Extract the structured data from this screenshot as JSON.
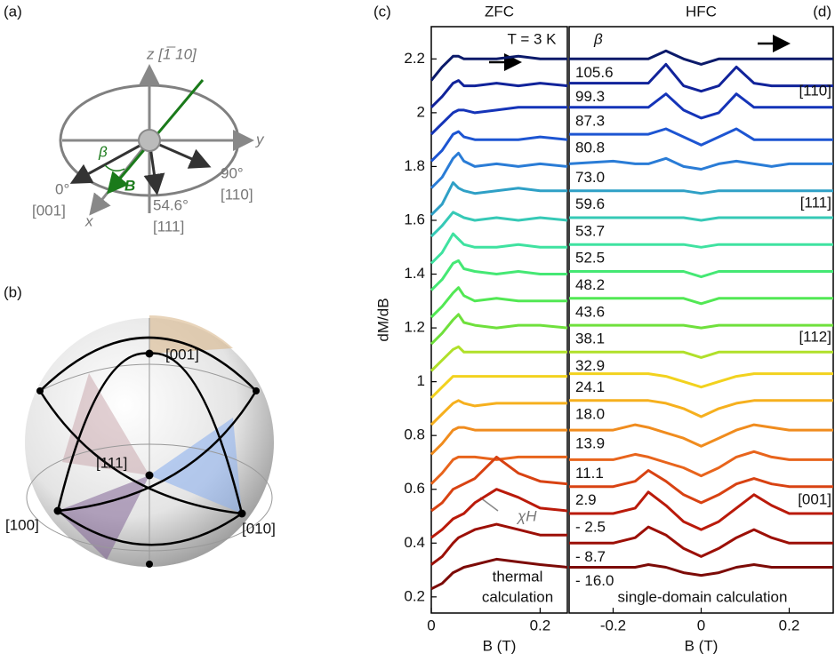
{
  "panel_a": {
    "label": "(a)",
    "z": "z [1̅ 10]",
    "y": "y",
    "x": "x",
    "beta": "β",
    "B": "B",
    "dirs": [
      {
        "angle": "0°",
        "axis": "[001]"
      },
      {
        "angle": "54.6°",
        "axis": "[111]"
      },
      {
        "angle": "90°",
        "axis": "[110]"
      }
    ]
  },
  "panel_b": {
    "label": "(b)",
    "dirs": [
      "[001]",
      "[111]",
      "[100]",
      "[010]"
    ]
  },
  "chart_data": [
    {
      "type": "line",
      "label": "(c)",
      "title": "ZFC",
      "ylabel": "dM/dB",
      "xlabel": "B (T)",
      "x": [
        0,
        0.02,
        0.04,
        0.05,
        0.06,
        0.08,
        0.12,
        0.16,
        0.2,
        0.25
      ],
      "xlim": [
        0,
        0.25
      ],
      "xticks": [
        0,
        0.2
      ],
      "ylim": [
        0.14,
        2.32
      ],
      "yticks": [
        0.2,
        0.4,
        0.6,
        0.8,
        1.0,
        1.2,
        1.4,
        1.6,
        1.8,
        2.0,
        2.2
      ],
      "annotations": [
        "T = 3 K",
        "χH",
        "thermal",
        "calculation"
      ],
      "series": [
        {
          "color": "#0b1a6a",
          "values": [
            2.12,
            2.17,
            2.21,
            2.21,
            2.2,
            2.2,
            2.2,
            2.21,
            2.2,
            2.2
          ]
        },
        {
          "color": "#11239a",
          "values": [
            2.02,
            2.06,
            2.11,
            2.12,
            2.1,
            2.1,
            2.11,
            2.1,
            2.11,
            2.1
          ]
        },
        {
          "color": "#1534b8",
          "values": [
            1.92,
            1.96,
            2.0,
            2.01,
            2.01,
            2.0,
            2.01,
            2.02,
            2.02,
            2.02
          ]
        },
        {
          "color": "#1d55d2",
          "values": [
            1.82,
            1.86,
            1.92,
            1.93,
            1.91,
            1.9,
            1.9,
            1.9,
            1.91,
            1.9
          ]
        },
        {
          "color": "#2a7cd6",
          "values": [
            1.72,
            1.76,
            1.83,
            1.85,
            1.82,
            1.8,
            1.81,
            1.8,
            1.81,
            1.8
          ]
        },
        {
          "color": "#2fa0c6",
          "values": [
            1.62,
            1.66,
            1.74,
            1.72,
            1.71,
            1.7,
            1.71,
            1.72,
            1.71,
            1.71
          ]
        },
        {
          "color": "#36c9b6",
          "values": [
            1.54,
            1.58,
            1.63,
            1.62,
            1.61,
            1.6,
            1.61,
            1.6,
            1.61,
            1.6
          ]
        },
        {
          "color": "#3fe2a0",
          "values": [
            1.44,
            1.48,
            1.55,
            1.53,
            1.51,
            1.5,
            1.5,
            1.51,
            1.5,
            1.5
          ]
        },
        {
          "color": "#45e874",
          "values": [
            1.34,
            1.38,
            1.44,
            1.45,
            1.42,
            1.41,
            1.4,
            1.41,
            1.4,
            1.4
          ]
        },
        {
          "color": "#52e854",
          "values": [
            1.24,
            1.28,
            1.33,
            1.35,
            1.32,
            1.3,
            1.31,
            1.3,
            1.3,
            1.3
          ]
        },
        {
          "color": "#6fe03c",
          "values": [
            1.14,
            1.18,
            1.23,
            1.25,
            1.22,
            1.21,
            1.2,
            1.21,
            1.21,
            1.2
          ]
        },
        {
          "color": "#b0e02a",
          "values": [
            1.04,
            1.08,
            1.12,
            1.13,
            1.11,
            1.11,
            1.11,
            1.11,
            1.11,
            1.11
          ]
        },
        {
          "color": "#f2d21e",
          "values": [
            0.94,
            0.98,
            1.02,
            1.02,
            1.02,
            1.02,
            1.02,
            1.02,
            1.02,
            1.02
          ]
        },
        {
          "color": "#f6b01e",
          "values": [
            0.84,
            0.88,
            0.92,
            0.93,
            0.92,
            0.91,
            0.92,
            0.92,
            0.92,
            0.92
          ]
        },
        {
          "color": "#f08c1e",
          "values": [
            0.73,
            0.77,
            0.82,
            0.83,
            0.83,
            0.82,
            0.82,
            0.82,
            0.82,
            0.82
          ]
        },
        {
          "color": "#e8641c",
          "values": [
            0.62,
            0.66,
            0.71,
            0.72,
            0.72,
            0.72,
            0.71,
            0.72,
            0.72,
            0.72
          ]
        },
        {
          "color": "#d84212",
          "values": [
            0.52,
            0.55,
            0.6,
            0.61,
            0.62,
            0.64,
            0.72,
            0.66,
            0.63,
            0.62
          ]
        },
        {
          "color": "#ba1a0a",
          "values": [
            0.42,
            0.45,
            0.49,
            0.5,
            0.51,
            0.55,
            0.6,
            0.57,
            0.53,
            0.52
          ]
        },
        {
          "color": "#9c0f06",
          "values": [
            0.32,
            0.35,
            0.4,
            0.42,
            0.43,
            0.45,
            0.47,
            0.45,
            0.43,
            0.43
          ]
        },
        {
          "color": "#7c0a06",
          "values": [
            0.23,
            0.25,
            0.29,
            0.3,
            0.31,
            0.32,
            0.34,
            0.33,
            0.32,
            0.31
          ]
        }
      ]
    },
    {
      "type": "line",
      "label": "(d)",
      "title": "HFC",
      "xlabel": "B (T)",
      "legend_title": "β",
      "x": [
        -0.3,
        -0.2,
        -0.15,
        -0.12,
        -0.08,
        -0.04,
        0,
        0.04,
        0.08,
        0.12,
        0.16,
        0.2,
        0.3
      ],
      "xlim": [
        -0.3,
        0.3
      ],
      "xticks": [
        -0.2,
        0,
        0.2
      ],
      "ylim": [
        0.14,
        2.32
      ],
      "annotations": [
        "[110]",
        "[111]",
        "[112]",
        "[001]",
        "single-domain calculation"
      ],
      "series": [
        {
          "name": "105.6",
          "color": "#0b1a6a",
          "values": [
            2.2,
            2.2,
            2.2,
            2.2,
            2.23,
            2.2,
            2.18,
            2.2,
            2.2,
            2.2,
            2.2,
            2.2,
            2.2
          ]
        },
        {
          "name": "99.3",
          "color": "#11239a",
          "values": [
            2.11,
            2.11,
            2.11,
            2.11,
            2.18,
            2.1,
            2.08,
            2.1,
            2.17,
            2.11,
            2.1,
            2.1,
            2.1
          ]
        },
        {
          "name": "87.3",
          "color": "#1534b8",
          "values": [
            2.02,
            2.02,
            2.02,
            2.02,
            2.07,
            2.01,
            1.98,
            2.0,
            2.07,
            2.02,
            2.02,
            2.02,
            2.02
          ]
        },
        {
          "name": "80.8",
          "color": "#1d55d2",
          "values": [
            1.92,
            1.92,
            1.92,
            1.92,
            1.94,
            1.91,
            1.88,
            1.91,
            1.94,
            1.9,
            1.9,
            1.9,
            1.9
          ]
        },
        {
          "name": "73.0",
          "color": "#2a7cd6",
          "values": [
            1.81,
            1.82,
            1.81,
            1.81,
            1.83,
            1.8,
            1.79,
            1.81,
            1.82,
            1.81,
            1.8,
            1.81,
            1.81
          ]
        },
        {
          "name": "59.6",
          "color": "#2fa0c6",
          "values": [
            1.71,
            1.71,
            1.71,
            1.71,
            1.71,
            1.71,
            1.7,
            1.71,
            1.71,
            1.71,
            1.71,
            1.71,
            1.71
          ]
        },
        {
          "name": "53.7",
          "color": "#36c9b6",
          "values": [
            1.61,
            1.61,
            1.61,
            1.61,
            1.61,
            1.61,
            1.6,
            1.61,
            1.61,
            1.61,
            1.61,
            1.61,
            1.61
          ]
        },
        {
          "name": "52.5",
          "color": "#3fe2a0",
          "values": [
            1.51,
            1.51,
            1.51,
            1.51,
            1.51,
            1.51,
            1.5,
            1.51,
            1.51,
            1.51,
            1.51,
            1.51,
            1.51
          ]
        },
        {
          "name": "48.2",
          "color": "#45e874",
          "values": [
            1.41,
            1.41,
            1.41,
            1.41,
            1.41,
            1.41,
            1.39,
            1.41,
            1.41,
            1.41,
            1.41,
            1.41,
            1.41
          ]
        },
        {
          "name": "43.6",
          "color": "#52e854",
          "values": [
            1.31,
            1.31,
            1.31,
            1.31,
            1.31,
            1.31,
            1.29,
            1.31,
            1.31,
            1.31,
            1.31,
            1.31,
            1.31
          ]
        },
        {
          "name": "38.1",
          "color": "#6fe03c",
          "values": [
            1.21,
            1.21,
            1.21,
            1.21,
            1.21,
            1.21,
            1.2,
            1.21,
            1.21,
            1.21,
            1.21,
            1.21,
            1.21
          ]
        },
        {
          "name": "32.9",
          "color": "#b0e02a",
          "values": [
            1.11,
            1.11,
            1.11,
            1.11,
            1.11,
            1.11,
            1.09,
            1.11,
            1.11,
            1.11,
            1.11,
            1.11,
            1.11
          ]
        },
        {
          "name": "24.1",
          "color": "#f2d21e",
          "values": [
            1.03,
            1.03,
            1.03,
            1.03,
            1.02,
            1.0,
            0.98,
            1.0,
            1.02,
            1.03,
            1.03,
            1.03,
            1.03
          ]
        },
        {
          "name": "18.0",
          "color": "#f6b01e",
          "values": [
            0.93,
            0.93,
            0.93,
            0.93,
            0.92,
            0.9,
            0.87,
            0.9,
            0.92,
            0.93,
            0.93,
            0.93,
            0.93
          ]
        },
        {
          "name": "13.9",
          "color": "#f08c1e",
          "values": [
            0.82,
            0.82,
            0.84,
            0.83,
            0.81,
            0.79,
            0.76,
            0.79,
            0.82,
            0.84,
            0.83,
            0.82,
            0.82
          ]
        },
        {
          "name": "11.1",
          "color": "#e8641c",
          "values": [
            0.71,
            0.71,
            0.73,
            0.72,
            0.7,
            0.68,
            0.65,
            0.68,
            0.72,
            0.74,
            0.72,
            0.71,
            0.71
          ]
        },
        {
          "name": "2.9",
          "color": "#d84212",
          "values": [
            0.61,
            0.61,
            0.63,
            0.67,
            0.63,
            0.58,
            0.55,
            0.58,
            0.62,
            0.64,
            0.62,
            0.61,
            0.61
          ]
        },
        {
          "name": "- 2.5",
          "color": "#ba1a0a",
          "values": [
            0.51,
            0.51,
            0.53,
            0.59,
            0.54,
            0.48,
            0.45,
            0.48,
            0.53,
            0.58,
            0.54,
            0.51,
            0.51
          ]
        },
        {
          "name": "- 8.7",
          "color": "#9c0f06",
          "values": [
            0.4,
            0.4,
            0.42,
            0.46,
            0.43,
            0.38,
            0.35,
            0.38,
            0.42,
            0.45,
            0.42,
            0.4,
            0.4
          ]
        },
        {
          "name": "- 16.0",
          "color": "#7c0a06",
          "values": [
            0.31,
            0.31,
            0.31,
            0.32,
            0.31,
            0.29,
            0.28,
            0.29,
            0.31,
            0.32,
            0.31,
            0.31,
            0.31
          ]
        }
      ]
    }
  ]
}
